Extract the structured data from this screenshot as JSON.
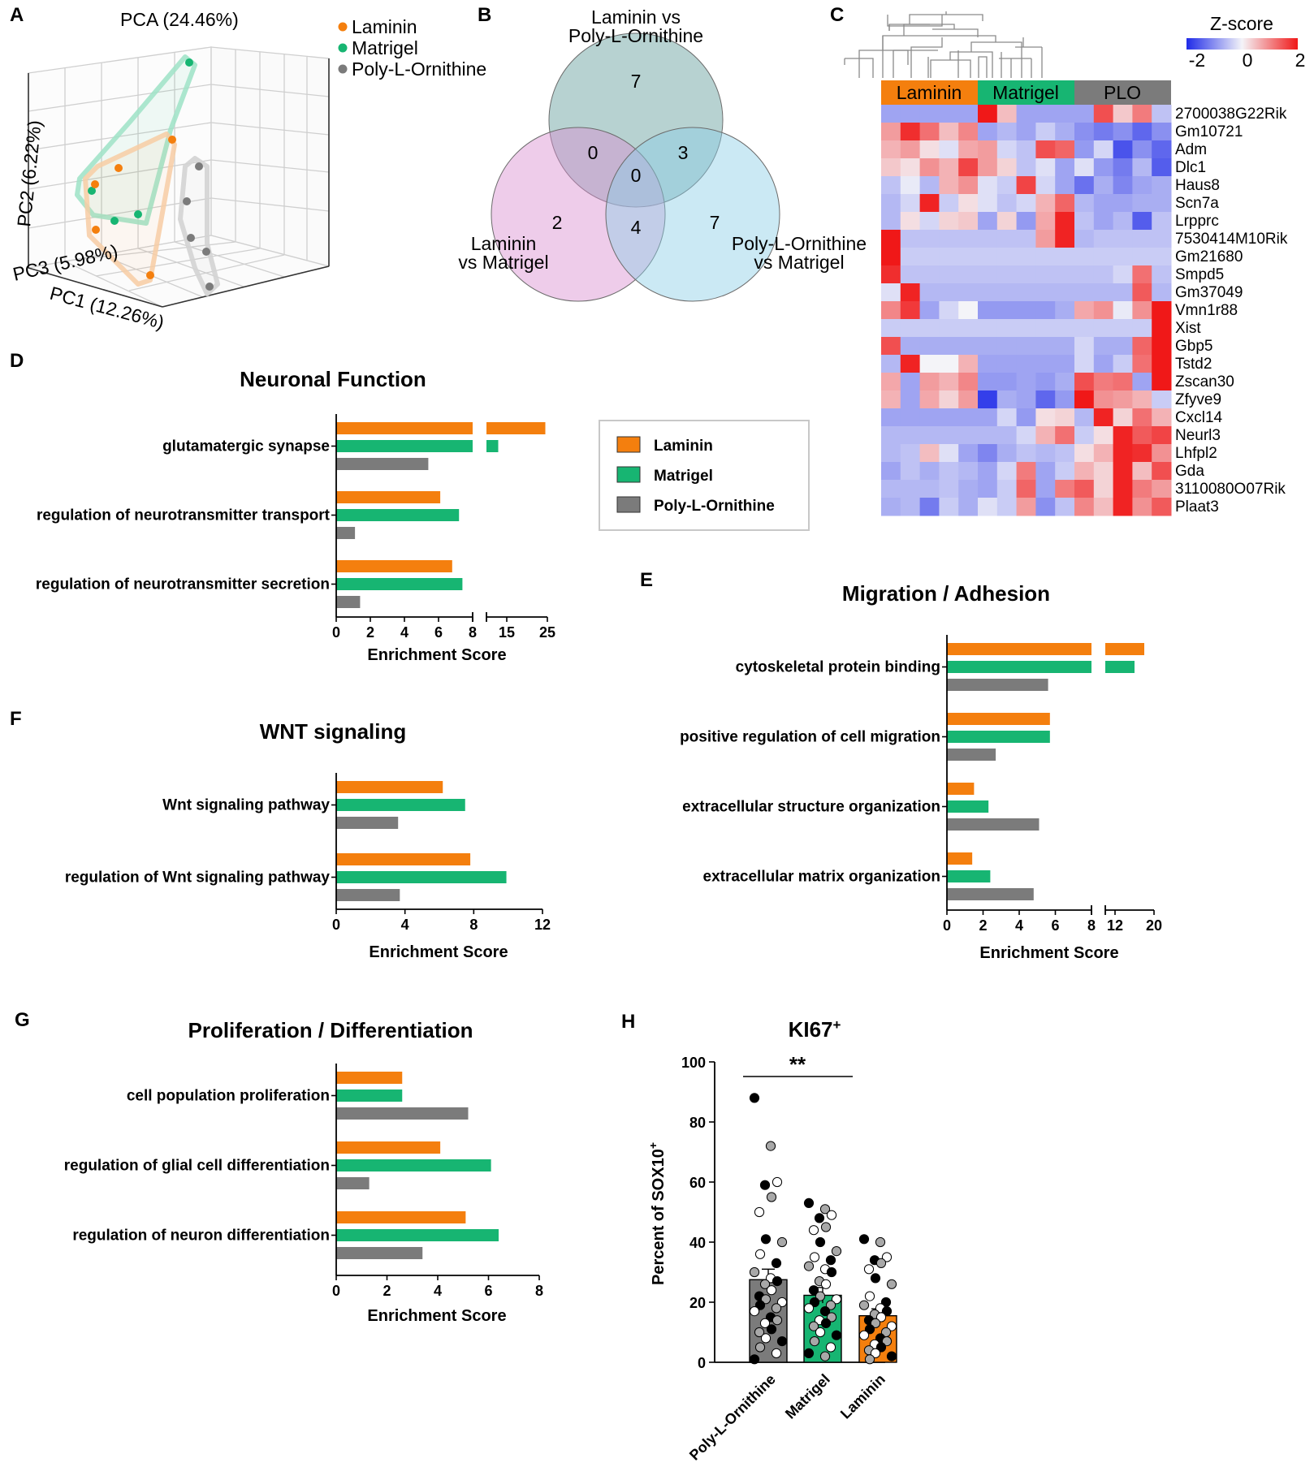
{
  "colors": {
    "laminin": "#F47F0E",
    "matrigel": "#17B572",
    "plo": "#7B7B7B",
    "plo_light": "#A8A8A8"
  },
  "panel_labels": {
    "a": "A",
    "b": "B",
    "c": "C",
    "d": "D",
    "e": "E",
    "f": "F",
    "g": "G",
    "h": "H"
  },
  "pca": {
    "title": "PCA (24.46%)",
    "legend": [
      "Laminin",
      "Matrigel",
      "Poly-L-Ornithine"
    ],
    "axes": {
      "pc1": "PC1 (12.26%)",
      "pc2": "PC2 (6.22%)",
      "pc3": "PC3 (5.98%)"
    }
  },
  "venn": {
    "set_labels": {
      "top_l1": "Laminin vs",
      "top_l2": "Poly-L-Ornithine",
      "left_l1": "Laminin",
      "left_l2": "vs Matrigel",
      "right_l1": "Poly-L-Ornithine",
      "right_l2": "vs Matrigel"
    },
    "counts": {
      "top_only": "7",
      "left_only": "2",
      "right_only": "7",
      "top_left": "0",
      "top_right": "3",
      "left_right": "4",
      "all": "0"
    }
  },
  "heatmap": {
    "scale_title": "Z-score",
    "scale_ticks": [
      "-2",
      "0",
      "2"
    ],
    "groups": [
      "Laminin",
      "Matrigel",
      "PLO"
    ],
    "genes": [
      "2700038G22Rik",
      "Gm10721",
      "Adm",
      "Dlc1",
      "Haus8",
      "Scn7a",
      "Lrpprc",
      "7530414M10Rik",
      "Gm21680",
      "Smpd5",
      "Gm37049",
      "Vmn1r88",
      "Xist",
      "Gbp5",
      "Tstd2",
      "Zscan30",
      "Zfyve9",
      "Cxcl14",
      "Neurl3",
      "Lhfpl2",
      "Gda",
      "3110080O07Rik",
      "Plaat3"
    ],
    "z": [
      [
        -0.8,
        -0.8,
        -0.8,
        -0.8,
        -0.8,
        2,
        0.5,
        -0.8,
        -0.8,
        -0.8,
        -0.8,
        1.5,
        0.4,
        1.1,
        -0.5
      ],
      [
        0.8,
        1.8,
        1.2,
        0.5,
        1.0,
        -0.8,
        -0.6,
        -0.8,
        -0.4,
        -0.7,
        -1.0,
        -1.2,
        -1.0,
        -1.4,
        -1.0
      ],
      [
        0.6,
        0.8,
        0.2,
        -0.2,
        0.7,
        0.8,
        -0.3,
        -0.5,
        1.5,
        1.3,
        -0.9,
        -0.3,
        -1.6,
        -1.0,
        -1.4
      ],
      [
        0.4,
        0.2,
        0.9,
        0.6,
        1.6,
        0.8,
        0.3,
        -0.5,
        -0.2,
        -0.8,
        -0.2,
        -0.9,
        -1.2,
        -0.6,
        -1.5
      ],
      [
        -0.5,
        -0.1,
        -0.6,
        0.6,
        0.9,
        -0.2,
        -0.4,
        1.6,
        -0.3,
        -0.8,
        -1.3,
        -0.7,
        -1.1,
        -0.8,
        -0.7
      ],
      [
        -0.6,
        -0.3,
        1.9,
        -0.4,
        0.2,
        -0.2,
        -0.5,
        -0.3,
        0.6,
        1.3,
        -0.6,
        -0.8,
        -0.8,
        -0.7,
        -0.7
      ],
      [
        -0.6,
        0.2,
        -0.3,
        0.3,
        0.4,
        -0.8,
        0.3,
        -0.9,
        0.7,
        1.9,
        -0.5,
        -0.8,
        -0.6,
        -1.5,
        -0.5
      ],
      [
        2,
        -0.5,
        -0.5,
        -0.5,
        -0.5,
        -0.5,
        -0.5,
        -0.5,
        0.8,
        1.9,
        -0.6,
        -0.5,
        -0.5,
        -0.5,
        -0.5
      ],
      [
        2,
        -0.4,
        -0.4,
        -0.4,
        -0.4,
        -0.4,
        -0.4,
        -0.4,
        -0.4,
        -0.4,
        -0.4,
        -0.4,
        -0.4,
        -0.4,
        -0.4
      ],
      [
        1.8,
        -0.5,
        -0.5,
        -0.5,
        -0.5,
        -0.5,
        -0.5,
        -0.5,
        -0.5,
        -0.5,
        -0.5,
        -0.5,
        -0.3,
        1.2,
        -0.5
      ],
      [
        -0.2,
        1.9,
        -0.6,
        -0.6,
        -0.6,
        -0.6,
        -0.6,
        -0.6,
        -0.6,
        -0.6,
        -0.6,
        -0.6,
        -0.6,
        1.4,
        -0.6
      ],
      [
        1.0,
        1.7,
        -0.8,
        -0.3,
        0.0,
        -0.9,
        -0.9,
        -0.9,
        -0.9,
        -0.7,
        0.7,
        0.9,
        -0.1,
        0.9,
        2
      ],
      [
        -0.4,
        -0.4,
        -0.4,
        -0.4,
        -0.4,
        -0.4,
        -0.4,
        -0.4,
        -0.4,
        -0.4,
        -0.4,
        -0.4,
        -0.4,
        -0.4,
        2
      ],
      [
        1.5,
        -0.7,
        -0.7,
        -0.7,
        -0.7,
        -0.7,
        -0.7,
        -0.7,
        -0.7,
        -0.7,
        -0.3,
        -0.7,
        -0.7,
        1.3,
        2
      ],
      [
        -0.6,
        1.9,
        0.0,
        0.0,
        0.6,
        -0.8,
        -0.8,
        -0.8,
        -0.8,
        -0.8,
        -0.3,
        -0.8,
        -0.4,
        1.2,
        2
      ],
      [
        0.7,
        -0.8,
        0.8,
        0.6,
        1.0,
        -0.9,
        -0.9,
        -0.8,
        -0.9,
        -0.7,
        1.5,
        1.1,
        1.2,
        -0.8,
        2
      ],
      [
        0.6,
        -0.8,
        0.7,
        0.3,
        0.8,
        -1.8,
        -0.7,
        -0.8,
        -1.4,
        -0.9,
        2,
        0.9,
        0.8,
        0.6,
        -0.4
      ],
      [
        -0.8,
        -0.8,
        -0.8,
        -0.8,
        -0.8,
        -0.8,
        -0.3,
        -0.9,
        0.2,
        0.3,
        -0.6,
        1.9,
        0.3,
        1.2,
        0.6
      ],
      [
        -0.6,
        -0.6,
        -0.6,
        -0.6,
        -0.6,
        -0.6,
        -0.6,
        -0.3,
        0.6,
        1.2,
        -0.4,
        0.2,
        1.9,
        1.4,
        1.6
      ],
      [
        -0.6,
        -0.5,
        0.5,
        -0.2,
        -0.8,
        -1.1,
        -0.7,
        -0.5,
        -0.6,
        -0.5,
        0.2,
        0.6,
        1.9,
        1.8,
        0.9
      ],
      [
        -0.8,
        -0.5,
        -0.7,
        -0.5,
        -0.6,
        -0.8,
        -0.3,
        1.1,
        -0.8,
        -0.4,
        0.6,
        0.3,
        1.9,
        0.5,
        1.5
      ],
      [
        -0.6,
        -0.6,
        -0.6,
        -0.5,
        -0.7,
        -0.8,
        -0.4,
        1.3,
        -0.8,
        1.1,
        1.4,
        0.3,
        1.9,
        1.1,
        0.8
      ],
      [
        -0.7,
        -0.6,
        -1.2,
        -0.4,
        -0.7,
        -0.2,
        -0.4,
        0.8,
        -1.0,
        -0.5,
        1.0,
        0.5,
        1.9,
        0.9,
        1.4
      ]
    ]
  },
  "legend_main": [
    "Laminin",
    "Matrigel",
    "Poly-L-Ornithine"
  ],
  "chart_data": [
    {
      "id": "D",
      "type": "bar",
      "orientation": "horizontal",
      "title": "Neuronal Function",
      "xlabel": "Enrichment Score",
      "x_ticks": [
        "0",
        "2",
        "4",
        "6",
        "8",
        "15",
        "25"
      ],
      "axis_break": [
        8,
        10
      ],
      "categories": [
        "glutamatergic synapse",
        "regulation of neurotransmitter transport",
        "regulation of neurotransmitter secretion"
      ],
      "series": [
        {
          "name": "Laminin",
          "values": [
            24.5,
            6.1,
            6.8
          ]
        },
        {
          "name": "Matrigel",
          "values": [
            12.9,
            7.2,
            7.4
          ]
        },
        {
          "name": "Poly-L-Ornithine",
          "values": [
            5.4,
            1.1,
            1.4
          ]
        }
      ]
    },
    {
      "id": "E",
      "type": "bar",
      "orientation": "horizontal",
      "title": "Migration / Adhesion",
      "xlabel": "Enrichment Score",
      "x_ticks": [
        "0",
        "2",
        "4",
        "6",
        "8",
        "12",
        "20"
      ],
      "axis_break": [
        8,
        10
      ],
      "categories": [
        "cytoskeletal protein binding",
        "positive regulation of cell migration",
        "extracellular structure organization",
        "extracellular matrix organization"
      ],
      "series": [
        {
          "name": "Laminin",
          "values": [
            18.0,
            5.7,
            1.5,
            1.4
          ]
        },
        {
          "name": "Matrigel",
          "values": [
            16.0,
            5.7,
            2.3,
            2.4
          ]
        },
        {
          "name": "Poly-L-Ornithine",
          "values": [
            5.6,
            2.7,
            5.1,
            4.8
          ]
        }
      ]
    },
    {
      "id": "F",
      "type": "bar",
      "orientation": "horizontal",
      "title": "WNT signaling",
      "xlabel": "Enrichment Score",
      "x_ticks": [
        "0",
        "4",
        "8",
        "12"
      ],
      "categories": [
        "Wnt signaling pathway",
        "regulation of Wnt signaling pathway"
      ],
      "series": [
        {
          "name": "Laminin",
          "values": [
            6.2,
            7.8
          ]
        },
        {
          "name": "Matrigel",
          "values": [
            7.5,
            9.9
          ]
        },
        {
          "name": "Poly-L-Ornithine",
          "values": [
            3.6,
            3.7
          ]
        }
      ]
    },
    {
      "id": "G",
      "type": "bar",
      "orientation": "horizontal",
      "title": "Proliferation / Differentiation",
      "xlabel": "Enrichment Score",
      "x_ticks": [
        "0",
        "2",
        "4",
        "6",
        "8"
      ],
      "categories": [
        "cell population proliferation",
        "regulation of glial cell differentiation",
        "regulation of neuron differentiation"
      ],
      "series": [
        {
          "name": "Laminin",
          "values": [
            2.6,
            4.1,
            5.1
          ]
        },
        {
          "name": "Matrigel",
          "values": [
            2.6,
            6.1,
            6.4
          ]
        },
        {
          "name": "Poly-L-Ornithine",
          "values": [
            5.2,
            1.3,
            3.4
          ]
        }
      ]
    },
    {
      "id": "H",
      "type": "bar",
      "title": "KI67",
      "title_sup": "+",
      "ylabel": "Percent of SOX10",
      "ylabel_sup": "+",
      "y_ticks": [
        "0",
        "20",
        "40",
        "60",
        "80",
        "100"
      ],
      "ylim": [
        0,
        100
      ],
      "categories": [
        "Poly-L-Ornithine",
        "Matrigel",
        "Laminin"
      ],
      "values": [
        27.5,
        22.3,
        15.5
      ],
      "errors": [
        3.5,
        2.6,
        2.3
      ],
      "significance": "**",
      "points": [
        [
          88,
          72,
          60,
          59,
          55,
          50,
          41,
          40,
          36,
          33,
          30,
          28,
          27,
          26,
          24,
          22,
          21,
          20,
          19,
          18,
          17,
          15,
          14,
          13,
          11,
          10,
          8,
          7,
          5,
          3,
          1
        ],
        [
          53,
          51,
          49,
          48,
          45,
          44,
          40,
          37,
          35,
          34,
          32,
          31,
          30,
          27,
          26,
          24,
          22,
          21,
          20,
          19,
          18,
          17,
          15,
          14,
          13,
          12,
          10,
          9,
          7,
          5,
          3,
          2
        ],
        [
          41,
          40,
          35,
          34,
          33,
          31,
          28,
          26,
          22,
          20,
          19,
          18,
          17,
          16,
          15,
          14,
          13,
          12,
          11,
          10,
          9,
          8,
          7,
          6,
          5,
          4,
          3,
          2,
          1
        ]
      ]
    }
  ]
}
